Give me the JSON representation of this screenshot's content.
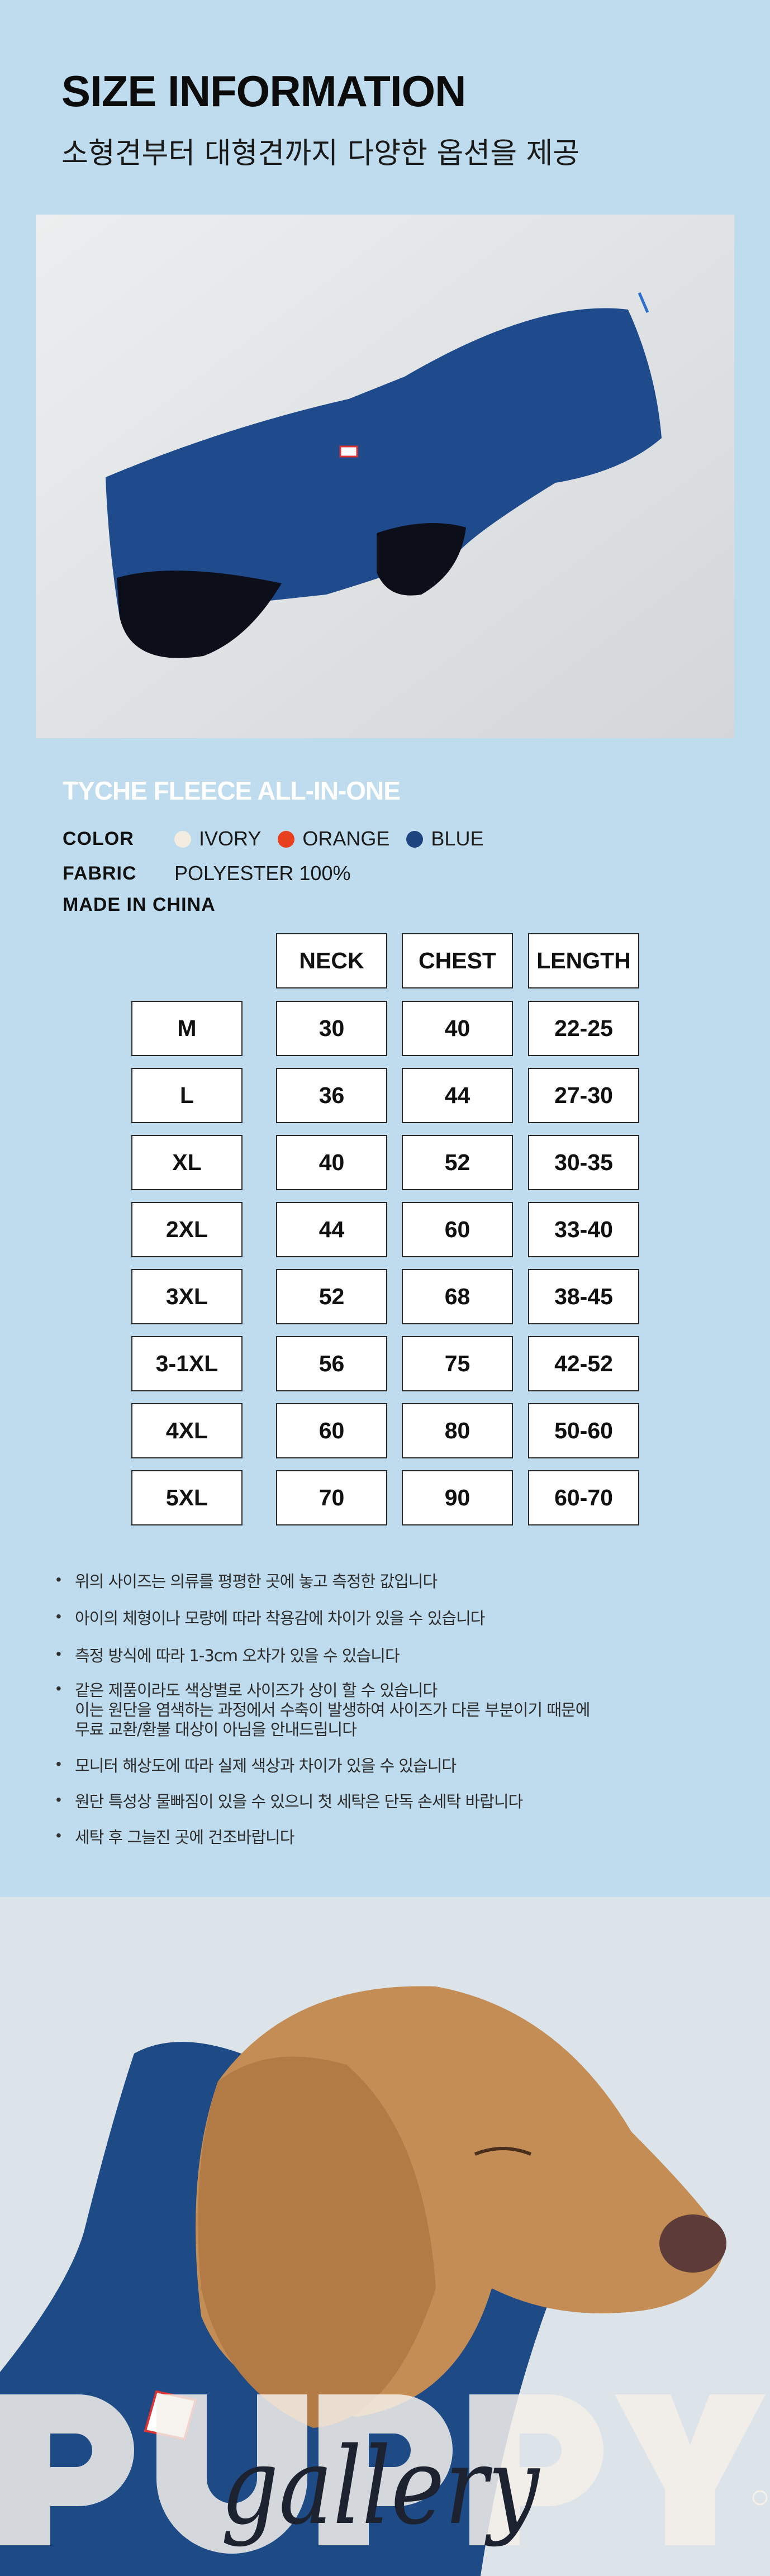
{
  "header": {
    "title": "SIZE INFORMATION",
    "subtitle": "소형견부터 대형견까지 다양한 옵션을 제공"
  },
  "product": {
    "name": "TYCHE FLEECE ALL-IN-ONE",
    "color_label": "COLOR",
    "colors": [
      {
        "name": "IVORY",
        "hex": "#f3ece0"
      },
      {
        "name": "ORANGE",
        "hex": "#e8401c"
      },
      {
        "name": "BLUE",
        "hex": "#1f4580"
      }
    ],
    "fabric_label": "FABRIC",
    "fabric": "POLYESTER 100%",
    "origin": "MADE IN CHINA"
  },
  "size_table": {
    "columns": [
      "NECK",
      "CHEST",
      "LENGTH"
    ],
    "rows": [
      {
        "size": "M",
        "neck": "30",
        "chest": "40",
        "length": "22-25"
      },
      {
        "size": "L",
        "neck": "36",
        "chest": "44",
        "length": "27-30"
      },
      {
        "size": "XL",
        "neck": "40",
        "chest": "52",
        "length": "30-35"
      },
      {
        "size": "2XL",
        "neck": "44",
        "chest": "60",
        "length": "33-40"
      },
      {
        "size": "3XL",
        "neck": "52",
        "chest": "68",
        "length": "38-45"
      },
      {
        "size": "3-1XL",
        "neck": "56",
        "chest": "75",
        "length": "42-52"
      },
      {
        "size": "4XL",
        "neck": "60",
        "chest": "80",
        "length": "50-60"
      },
      {
        "size": "5XL",
        "neck": "70",
        "chest": "90",
        "length": "60-70"
      }
    ]
  },
  "notes": [
    [
      "위의 사이즈는 의류를 평평한 곳에 놓고 측정한 값입니다"
    ],
    [
      "아이의 체형이나 모량에 따라 착용감에 차이가 있을 수 있습니다"
    ],
    [
      "측정 방식에 따라 1-3cm 오차가 있을 수 있습니다"
    ],
    [
      "같은 제품이라도 색상별로 사이즈가 상이 할 수 있습니다",
      "이는 원단을 염색하는 과정에서 수축이 발생하여 사이즈가 다른 부분이기 때문에",
      "무료 교환/환불 대상이 아님을 안내드립니다"
    ],
    [
      "모니터 해상도에 따라 실제 색상과 차이가 있을 수 있습니다"
    ],
    [
      "원단 특성상 물빠짐이 있을 수 있으니 첫 세탁은 단독 손세탁 바랍니다"
    ],
    [
      "세탁 후 그늘진 곳에 건조바랍니다"
    ]
  ],
  "logo": {
    "word": "PUPPY",
    "script": "gallery",
    "mark": "®"
  },
  "colors": {
    "background": "#bedcee",
    "fleece": "#1f4a8c"
  }
}
